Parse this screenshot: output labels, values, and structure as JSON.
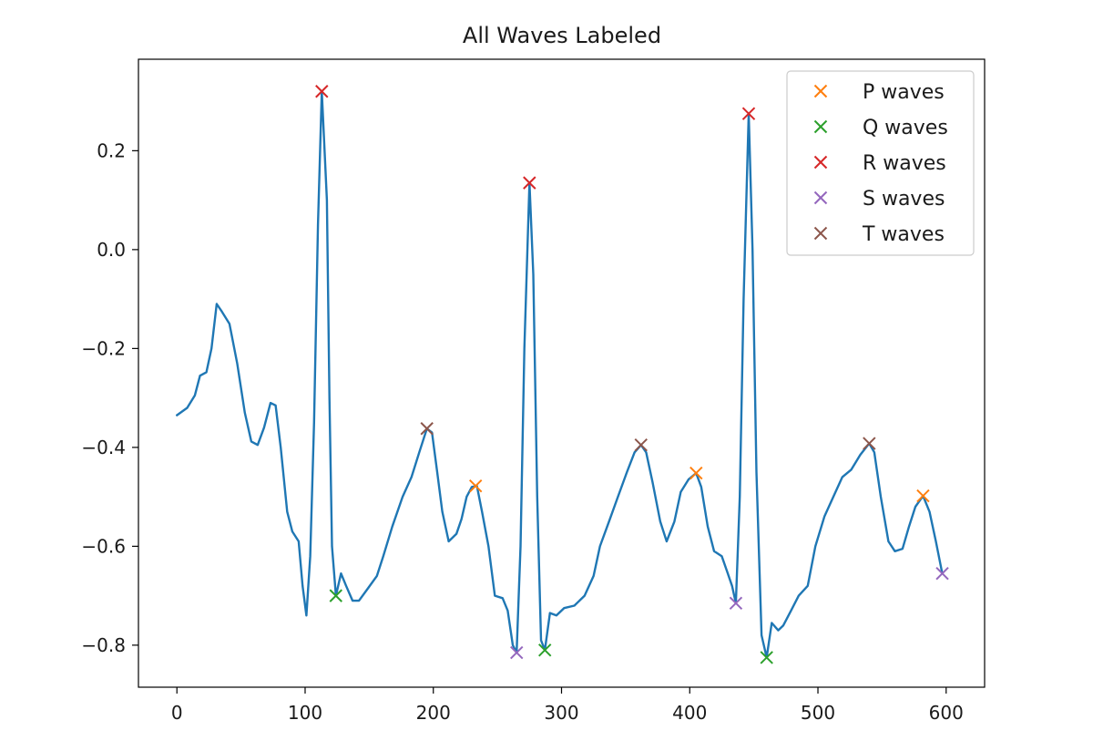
{
  "chart_data": {
    "type": "line",
    "title": "All Waves Labeled",
    "xlabel": "",
    "ylabel": "",
    "xlim": [
      -30,
      630
    ],
    "ylim": [
      -0.885,
      0.385
    ],
    "xticks": [
      0,
      100,
      200,
      300,
      400,
      500,
      600
    ],
    "xtick_labels": [
      "0",
      "100",
      "200",
      "300",
      "400",
      "500",
      "600"
    ],
    "yticks": [
      0.2,
      0.0,
      -0.2,
      -0.4,
      -0.6,
      -0.8
    ],
    "ytick_labels": [
      "0.2",
      "0.0",
      "−0.2",
      "−0.4",
      "−0.6",
      "−0.8"
    ],
    "grid": false,
    "legend_position": "top-right",
    "signal": {
      "color": "#1f77b4",
      "points": [
        [
          0,
          -0.335
        ],
        [
          8,
          -0.32
        ],
        [
          14,
          -0.295
        ],
        [
          18,
          -0.255
        ],
        [
          23,
          -0.248
        ],
        [
          27,
          -0.2
        ],
        [
          31,
          -0.11
        ],
        [
          35,
          -0.125
        ],
        [
          41,
          -0.15
        ],
        [
          47,
          -0.23
        ],
        [
          53,
          -0.33
        ],
        [
          58,
          -0.388
        ],
        [
          63,
          -0.395
        ],
        [
          68,
          -0.36
        ],
        [
          73,
          -0.31
        ],
        [
          77,
          -0.315
        ],
        [
          81,
          -0.4
        ],
        [
          86,
          -0.53
        ],
        [
          90,
          -0.57
        ],
        [
          95,
          -0.59
        ],
        [
          98,
          -0.68
        ],
        [
          101,
          -0.74
        ],
        [
          104,
          -0.62
        ],
        [
          107,
          -0.35
        ],
        [
          110,
          0.05
        ],
        [
          113,
          0.32
        ],
        [
          117,
          0.1
        ],
        [
          119,
          -0.3
        ],
        [
          121,
          -0.6
        ],
        [
          124,
          -0.7
        ],
        [
          128,
          -0.655
        ],
        [
          132,
          -0.68
        ],
        [
          137,
          -0.71
        ],
        [
          142,
          -0.71
        ],
        [
          149,
          -0.685
        ],
        [
          156,
          -0.66
        ],
        [
          161,
          -0.62
        ],
        [
          168,
          -0.56
        ],
        [
          176,
          -0.5
        ],
        [
          183,
          -0.46
        ],
        [
          189,
          -0.41
        ],
        [
          195,
          -0.362
        ],
        [
          199,
          -0.37
        ],
        [
          203,
          -0.45
        ],
        [
          207,
          -0.53
        ],
        [
          212,
          -0.59
        ],
        [
          218,
          -0.575
        ],
        [
          222,
          -0.545
        ],
        [
          226,
          -0.5
        ],
        [
          230,
          -0.48
        ],
        [
          234,
          -0.478
        ],
        [
          238,
          -0.53
        ],
        [
          243,
          -0.6
        ],
        [
          248,
          -0.7
        ],
        [
          254,
          -0.705
        ],
        [
          258,
          -0.73
        ],
        [
          262,
          -0.8
        ],
        [
          265,
          -0.815
        ],
        [
          268,
          -0.6
        ],
        [
          271,
          -0.2
        ],
        [
          275,
          0.135
        ],
        [
          278,
          -0.05
        ],
        [
          281,
          -0.5
        ],
        [
          284,
          -0.79
        ],
        [
          287,
          -0.81
        ],
        [
          291,
          -0.735
        ],
        [
          296,
          -0.74
        ],
        [
          302,
          -0.725
        ],
        [
          310,
          -0.72
        ],
        [
          318,
          -0.7
        ],
        [
          325,
          -0.66
        ],
        [
          330,
          -0.6
        ],
        [
          337,
          -0.55
        ],
        [
          344,
          -0.5
        ],
        [
          351,
          -0.45
        ],
        [
          357,
          -0.41
        ],
        [
          362,
          -0.395
        ],
        [
          366,
          -0.41
        ],
        [
          371,
          -0.47
        ],
        [
          377,
          -0.55
        ],
        [
          382,
          -0.59
        ],
        [
          388,
          -0.55
        ],
        [
          393,
          -0.49
        ],
        [
          399,
          -0.465
        ],
        [
          405,
          -0.452
        ],
        [
          409,
          -0.48
        ],
        [
          414,
          -0.56
        ],
        [
          419,
          -0.61
        ],
        [
          425,
          -0.62
        ],
        [
          429,
          -0.65
        ],
        [
          433,
          -0.68
        ],
        [
          436,
          -0.715
        ],
        [
          439,
          -0.5
        ],
        [
          442,
          -0.1
        ],
        [
          446,
          0.275
        ],
        [
          449,
          0.0
        ],
        [
          452,
          -0.45
        ],
        [
          456,
          -0.78
        ],
        [
          460,
          -0.825
        ],
        [
          464,
          -0.755
        ],
        [
          469,
          -0.77
        ],
        [
          473,
          -0.76
        ],
        [
          479,
          -0.73
        ],
        [
          485,
          -0.7
        ],
        [
          492,
          -0.68
        ],
        [
          498,
          -0.6
        ],
        [
          505,
          -0.54
        ],
        [
          512,
          -0.5
        ],
        [
          519,
          -0.46
        ],
        [
          526,
          -0.445
        ],
        [
          533,
          -0.415
        ],
        [
          540,
          -0.392
        ],
        [
          544,
          -0.41
        ],
        [
          549,
          -0.5
        ],
        [
          555,
          -0.59
        ],
        [
          560,
          -0.61
        ],
        [
          566,
          -0.605
        ],
        [
          571,
          -0.56
        ],
        [
          576,
          -0.52
        ],
        [
          582,
          -0.498
        ],
        [
          587,
          -0.53
        ],
        [
          592,
          -0.59
        ],
        [
          597,
          -0.655
        ]
      ]
    },
    "series": [
      {
        "name": "P waves",
        "color": "#ff7f0e",
        "marker": "x",
        "points": [
          [
            233,
            -0.478
          ],
          [
            405,
            -0.452
          ],
          [
            582,
            -0.498
          ]
        ]
      },
      {
        "name": "Q waves",
        "color": "#2ca02c",
        "marker": "x",
        "points": [
          [
            124,
            -0.7
          ],
          [
            287,
            -0.81
          ],
          [
            460,
            -0.825
          ]
        ]
      },
      {
        "name": "R waves",
        "color": "#d62728",
        "marker": "x",
        "points": [
          [
            113,
            0.32
          ],
          [
            275,
            0.135
          ],
          [
            446,
            0.275
          ]
        ]
      },
      {
        "name": "S waves",
        "color": "#9467bd",
        "marker": "x",
        "points": [
          [
            265,
            -0.815
          ],
          [
            436,
            -0.715
          ],
          [
            597,
            -0.655
          ]
        ]
      },
      {
        "name": "T waves",
        "color": "#8c564b",
        "marker": "x",
        "points": [
          [
            195,
            -0.362
          ],
          [
            362,
            -0.395
          ],
          [
            540,
            -0.392
          ]
        ]
      }
    ]
  }
}
